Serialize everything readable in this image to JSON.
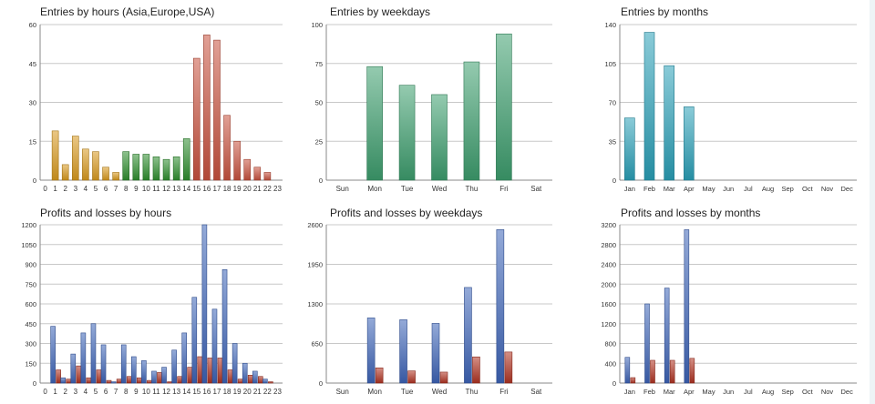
{
  "colors": {
    "orange": "#d99a1f",
    "green": "#2f8f2f",
    "red": "#c9523f",
    "teal_green": "#3d9e6e",
    "teal": "#2aa0b8",
    "blue": "#3d64b8",
    "dark_red": "#b03322",
    "grid": "#c8c8c8",
    "axis_text": "#333333"
  },
  "chart_data": [
    {
      "id": "entries-hours",
      "type": "bar",
      "title": "Entries by hours (Asia,Europe,USA)",
      "categories": [
        "0",
        "1",
        "2",
        "3",
        "4",
        "5",
        "6",
        "7",
        "8",
        "9",
        "10",
        "11",
        "12",
        "13",
        "14",
        "15",
        "16",
        "17",
        "18",
        "19",
        "20",
        "21",
        "22",
        "23"
      ],
      "series": [
        {
          "values": [
            0,
            19,
            6,
            17,
            12,
            11,
            5,
            3,
            11,
            10,
            10,
            9,
            8,
            9,
            16,
            47,
            56,
            54,
            25,
            15,
            8,
            5,
            3,
            0
          ],
          "colors": [
            "orange",
            "orange",
            "orange",
            "orange",
            "orange",
            "orange",
            "orange",
            "orange",
            "green",
            "green",
            "green",
            "green",
            "green",
            "green",
            "green",
            "red",
            "red",
            "red",
            "red",
            "red",
            "red",
            "red",
            "red",
            "red"
          ]
        }
      ],
      "ylim": [
        0,
        60
      ],
      "yticks": [
        "0",
        "15",
        "30",
        "45",
        "60"
      ],
      "grid": true,
      "legend": "none"
    },
    {
      "id": "entries-weekdays",
      "type": "bar",
      "title": "Entries by weekdays",
      "categories": [
        "Sun",
        "Mon",
        "Tue",
        "Wed",
        "Thu",
        "Fri",
        "Sat"
      ],
      "series": [
        {
          "values": [
            0,
            73,
            61,
            55,
            76,
            94,
            0
          ],
          "color": "teal_green"
        }
      ],
      "ylim": [
        0,
        100
      ],
      "yticks": [
        "0",
        "25",
        "50",
        "75",
        "100"
      ],
      "grid": true,
      "legend": "none"
    },
    {
      "id": "entries-months",
      "type": "bar",
      "title": "Entries by months",
      "categories": [
        "Jan",
        "Feb",
        "Mar",
        "Apr",
        "May",
        "Jun",
        "Jul",
        "Aug",
        "Sep",
        "Oct",
        "Nov",
        "Dec"
      ],
      "series": [
        {
          "values": [
            56,
            133,
            103,
            66,
            0,
            0,
            0,
            0,
            0,
            0,
            0,
            0
          ],
          "color": "teal"
        }
      ],
      "ylim": [
        0,
        140
      ],
      "yticks": [
        "0",
        "35",
        "70",
        "105",
        "140"
      ],
      "grid": true,
      "legend": "none"
    },
    {
      "id": "pl-hours",
      "type": "bar",
      "title": "Profits and losses by hours",
      "categories": [
        "0",
        "1",
        "2",
        "3",
        "4",
        "5",
        "6",
        "7",
        "8",
        "9",
        "10",
        "11",
        "12",
        "13",
        "14",
        "15",
        "16",
        "17",
        "18",
        "19",
        "20",
        "21",
        "22",
        "23"
      ],
      "series": [
        {
          "values": [
            0,
            430,
            40,
            220,
            380,
            450,
            290,
            10,
            290,
            200,
            170,
            90,
            120,
            250,
            380,
            650,
            1200,
            560,
            860,
            300,
            150,
            90,
            30,
            0
          ],
          "color": "blue"
        },
        {
          "values": [
            0,
            100,
            30,
            130,
            40,
            100,
            20,
            30,
            50,
            40,
            20,
            80,
            10,
            50,
            120,
            200,
            190,
            190,
            100,
            30,
            60,
            50,
            10,
            0
          ],
          "color": "dark_red"
        }
      ],
      "ylim": [
        0,
        1200
      ],
      "yticks": [
        "0",
        "150",
        "300",
        "450",
        "600",
        "750",
        "900",
        "1050",
        "1200"
      ],
      "grid": true,
      "legend": "none"
    },
    {
      "id": "pl-weekdays",
      "type": "bar",
      "title": "Profits and losses by weekdays",
      "categories": [
        "Sun",
        "Mon",
        "Tue",
        "Wed",
        "Thu",
        "Fri",
        "Sat"
      ],
      "series": [
        {
          "values": [
            0,
            1070,
            1040,
            980,
            1570,
            2520,
            0
          ],
          "color": "blue"
        },
        {
          "values": [
            0,
            250,
            200,
            180,
            430,
            510,
            0
          ],
          "color": "dark_red"
        }
      ],
      "ylim": [
        0,
        2600
      ],
      "yticks": [
        "0",
        "650",
        "1300",
        "1950",
        "2600"
      ],
      "grid": true,
      "legend": "none"
    },
    {
      "id": "pl-months",
      "type": "bar",
      "title": "Profits and losses by months",
      "categories": [
        "Jan",
        "Feb",
        "Mar",
        "Apr",
        "May",
        "Jun",
        "Jul",
        "Aug",
        "Sep",
        "Oct",
        "Nov",
        "Dec"
      ],
      "series": [
        {
          "values": [
            520,
            1600,
            1920,
            3100,
            0,
            0,
            0,
            0,
            0,
            0,
            0,
            0
          ],
          "color": "blue"
        },
        {
          "values": [
            110,
            460,
            460,
            500,
            0,
            0,
            0,
            0,
            0,
            0,
            0,
            0
          ],
          "color": "dark_red"
        }
      ],
      "ylim": [
        0,
        3200
      ],
      "yticks": [
        "0",
        "400",
        "800",
        "1200",
        "1600",
        "2000",
        "2400",
        "2800",
        "3200"
      ],
      "grid": true,
      "legend": "none"
    }
  ]
}
